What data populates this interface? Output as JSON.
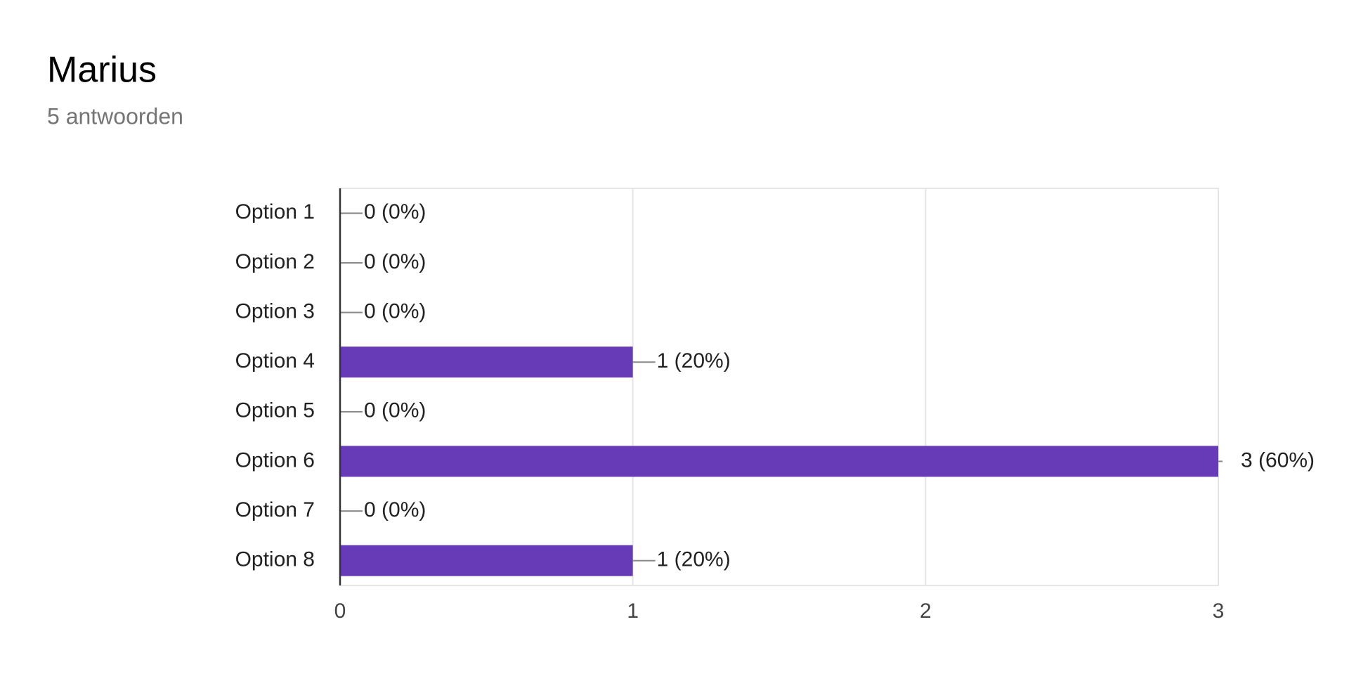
{
  "chart_data": {
    "type": "bar",
    "orientation": "horizontal",
    "title": "Marius",
    "subtitle": "5 antwoorden",
    "categories": [
      "Option 1",
      "Option 2",
      "Option 3",
      "Option 4",
      "Option 5",
      "Option 6",
      "Option 7",
      "Option 8"
    ],
    "values": [
      0,
      0,
      0,
      1,
      0,
      3,
      0,
      1
    ],
    "value_labels": [
      "0 (0%)",
      "0 (0%)",
      "0 (0%)",
      "1 (20%)",
      "0 (0%)",
      "3 (60%)",
      "0 (0%)",
      "1 (20%)"
    ],
    "color": "#673ab7",
    "xlim": [
      0,
      3
    ],
    "xticks": [
      0,
      1,
      2,
      3
    ],
    "grid": true
  }
}
